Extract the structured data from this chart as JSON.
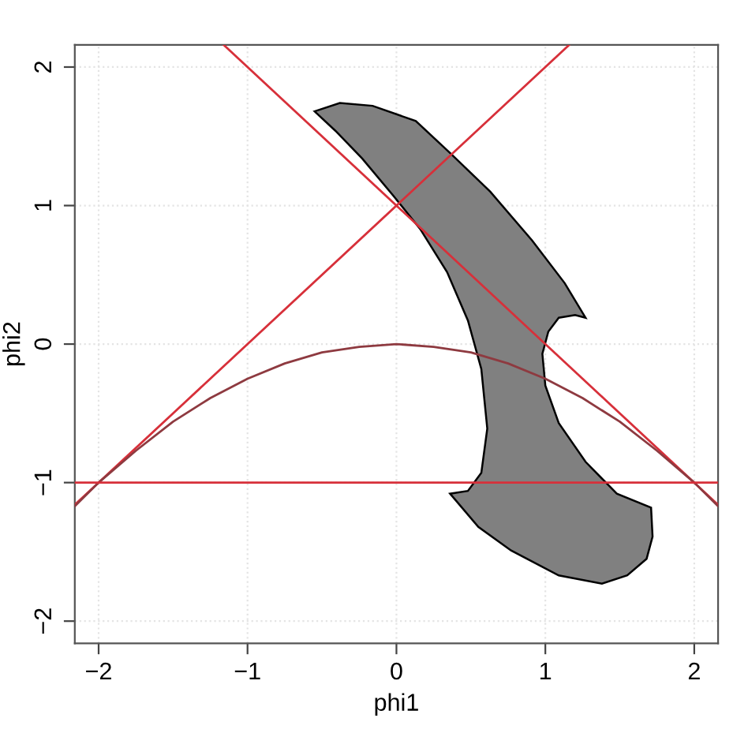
{
  "chart_data": {
    "type": "line",
    "xlabel": "phi1",
    "ylabel": "phi2",
    "xlim": [
      -2.16,
      2.16
    ],
    "ylim": [
      -2.16,
      2.16
    ],
    "xticks": [
      -2,
      -1,
      0,
      1,
      2
    ],
    "yticks": [
      -2,
      -1,
      0,
      1,
      2
    ],
    "grid": true,
    "series": [
      {
        "type": "area",
        "color": "#808080",
        "x": [
          -0.55,
          -0.38,
          -0.16,
          0.13,
          0.36,
          0.63,
          0.91,
          1.13,
          1.27,
          1.2,
          1.09,
          1.02,
          0.98,
          1.0,
          1.09,
          1.27,
          1.48,
          1.71,
          1.72,
          1.68,
          1.55,
          1.38,
          1.09,
          0.77,
          0.55,
          0.36,
          0.48,
          0.57,
          0.61,
          0.57,
          0.48,
          0.34,
          0.16,
          -0.02,
          -0.23,
          -0.41
        ],
        "values": [
          1.68,
          1.74,
          1.72,
          1.61,
          1.38,
          1.1,
          0.75,
          0.44,
          0.19,
          0.21,
          0.19,
          0.09,
          -0.07,
          -0.3,
          -0.57,
          -0.85,
          -1.08,
          -1.18,
          -1.39,
          -1.55,
          -1.67,
          -1.73,
          -1.67,
          -1.49,
          -1.32,
          -1.08,
          -1.06,
          -0.93,
          -0.61,
          -0.18,
          0.17,
          0.52,
          0.83,
          1.07,
          1.34,
          1.54
        ]
      },
      {
        "color": "#d7303a",
        "x": [
          -2.16,
          1.16
        ],
        "values": [
          -1.16,
          2.16
        ]
      },
      {
        "color": "#d7303a",
        "x": [
          -1.16,
          2.16
        ],
        "values": [
          2.16,
          -1.16
        ]
      },
      {
        "color": "#8e3a40",
        "x": [
          -2.16,
          -2,
          -1.75,
          -1.5,
          -1.25,
          -1,
          -0.75,
          -0.5,
          -0.25,
          0,
          0.25,
          0.5,
          0.75,
          1,
          1.25,
          1.5,
          1.75,
          2,
          2.16
        ],
        "values": [
          -1.17,
          -1,
          -0.77,
          -0.56,
          -0.39,
          -0.25,
          -0.14,
          -0.06,
          -0.02,
          0,
          -0.02,
          -0.06,
          -0.14,
          -0.25,
          -0.39,
          -0.56,
          -0.77,
          -1,
          -1.17
        ]
      }
    ],
    "ref_lines": [
      {
        "axis": "y",
        "value": -1,
        "color": "#d7303a"
      }
    ]
  }
}
